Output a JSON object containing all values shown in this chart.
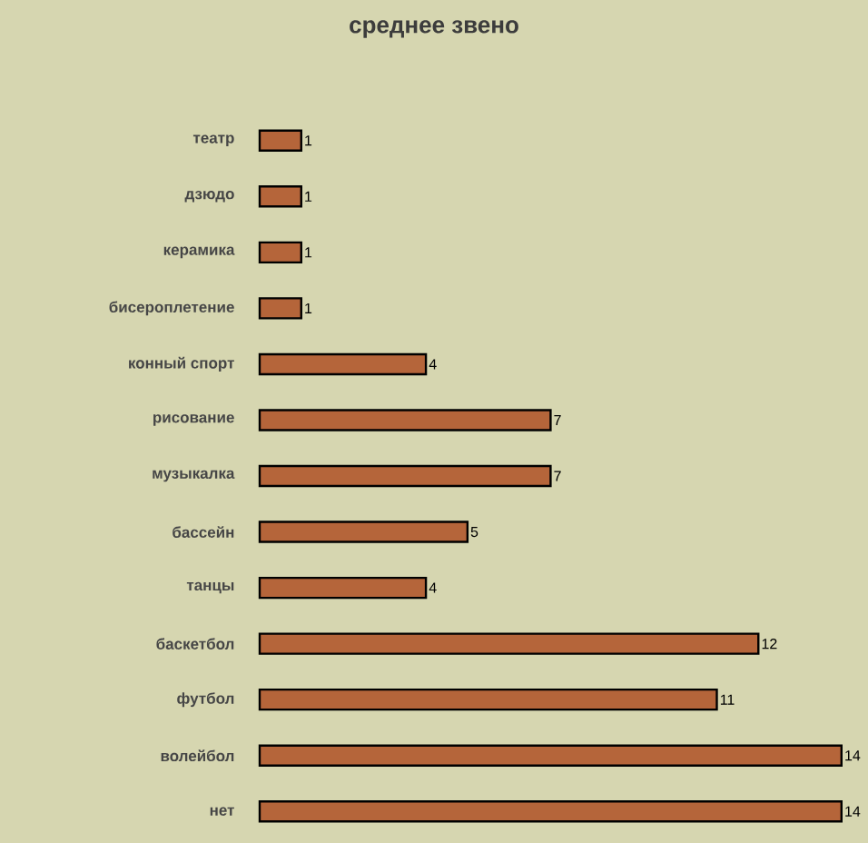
{
  "chart_data": {
    "type": "bar",
    "orientation": "horizontal",
    "title": "среднее звено",
    "categories": [
      "театр",
      "дзюдо",
      "керамика",
      "бисероплетение",
      "конный спорт",
      "рисование",
      "музыкалка",
      "бассейн",
      "танцы",
      "баскетбол",
      "футбол",
      "волейбол",
      "нет"
    ],
    "values": [
      1,
      1,
      1,
      1,
      4,
      7,
      7,
      5,
      4,
      12,
      11,
      14,
      14
    ],
    "color": "#b5653a",
    "data_labels": true
  }
}
